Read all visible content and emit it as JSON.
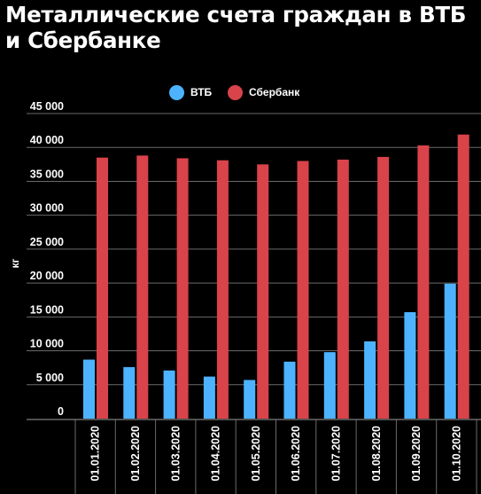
{
  "title": "Металлические счета граждан в ВТБ и Сбербанке",
  "colors": {
    "background": "#000000",
    "vtb": "#4db3ff",
    "sber": "#d9434a",
    "grid": "#6a6a6a",
    "text": "#ffffff"
  },
  "chart_data": {
    "type": "bar",
    "title": "Металлические счета граждан в ВТБ и Сбербанке",
    "xlabel": "",
    "ylabel": "кг",
    "ylim": [
      0,
      45000
    ],
    "yticks": [
      0,
      5000,
      10000,
      15000,
      20000,
      25000,
      30000,
      35000,
      40000,
      45000
    ],
    "ytick_labels": [
      "0",
      "5 000",
      "10 000",
      "15 000",
      "20 000",
      "25 000",
      "30 000",
      "35 000",
      "40 000",
      "45 000"
    ],
    "grid": true,
    "legend_position": "top",
    "categories": [
      "01.01.2020",
      "01.02.2020",
      "01.03.2020",
      "01.04.2020",
      "01.05.2020",
      "01.06.2020",
      "01.07.2020",
      "01.08.2020",
      "01.09.2020",
      "01.10.2020"
    ],
    "series": [
      {
        "name": "ВТБ",
        "color": "#4db3ff",
        "values": [
          8700,
          7600,
          7100,
          6200,
          5700,
          8400,
          9800,
          11400,
          15700,
          19900
        ]
      },
      {
        "name": "Сбербанк",
        "color": "#d9434a",
        "values": [
          38500,
          38800,
          38400,
          38100,
          37500,
          38000,
          38200,
          38600,
          40300,
          41900
        ]
      }
    ]
  }
}
